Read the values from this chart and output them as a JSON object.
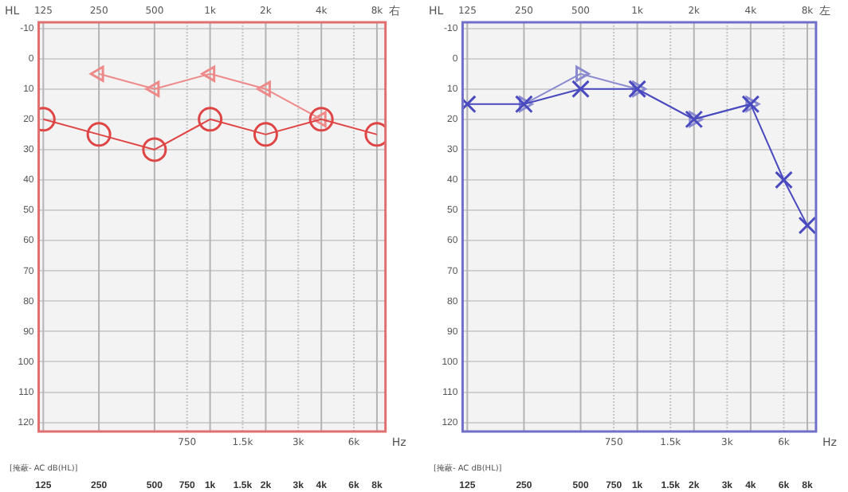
{
  "chart_data": [
    {
      "type": "line",
      "title": "右",
      "xlabel": "Hz",
      "ylabel": "HL",
      "log": "x",
      "grid": "y",
      "legend": false,
      "line_style": "solid",
      "x": [
        125,
        250,
        500,
        1000,
        2000,
        4000,
        6000,
        8000
      ],
      "series": [
        {
          "color": "#e04545",
          "marker": "circle",
          "values": [
            20,
            25,
            30,
            20,
            25,
            20,
            null,
            25
          ]
        },
        {
          "color": "#ee8a8a",
          "marker": "triangle",
          "values": [
            null,
            5,
            10,
            5,
            10,
            20,
            null,
            null
          ]
        }
      ],
      "xlim": [
        118,
        8900
      ],
      "ylim": [
        123,
        -12
      ],
      "yticks": [
        -10,
        0,
        10,
        20,
        30,
        40,
        50,
        60,
        70,
        80,
        90,
        100,
        110,
        120
      ],
      "xticks": [
        125,
        250,
        500,
        750,
        {
          "value": 1000,
          "label": "1k"
        },
        {
          "value": 1500,
          "label": "1.5k"
        },
        {
          "value": 2000,
          "label": "2k"
        },
        {
          "value": 3000,
          "label": "3k"
        },
        {
          "value": 4000,
          "label": "4k"
        },
        {
          "value": 6000,
          "label": "6k"
        },
        {
          "value": 8000,
          "label": "8k"
        }
      ],
      "ref_lines": [
        {
          "axis": "x",
          "value": 125,
          "label": "125",
          "color": "#b4b4b4",
          "line_style": "solid"
        },
        {
          "axis": "x",
          "value": 250,
          "label": "250",
          "color": "#b4b4b4",
          "line_style": "solid"
        },
        {
          "axis": "x",
          "value": 500,
          "label": "500",
          "color": "#b4b4b4",
          "line_style": "solid"
        },
        {
          "axis": "x",
          "value": 1000,
          "label": "1k",
          "color": "#b4b4b4",
          "line_style": "solid"
        },
        {
          "axis": "x",
          "value": 2000,
          "label": "2k",
          "color": "#b4b4b4",
          "line_style": "solid"
        },
        {
          "axis": "x",
          "value": 4000,
          "label": "4k",
          "color": "#b4b4b4",
          "line_style": "solid"
        },
        {
          "axis": "x",
          "value": 8000,
          "label": "8k",
          "color": "#b4b4b4",
          "line_style": "solid"
        },
        {
          "axis": "x",
          "value": 750,
          "label": "750",
          "color": "#c4c4c4",
          "line_style": "dotted"
        },
        {
          "axis": "x",
          "value": 1500,
          "label": "1.5k",
          "color": "#c4c4c4",
          "line_style": "dotted"
        },
        {
          "axis": "x",
          "value": 3000,
          "label": "3k",
          "color": "#c4c4c4",
          "line_style": "dotted"
        },
        {
          "axis": "x",
          "value": 6000,
          "label": "6k",
          "color": "#c4c4c4",
          "line_style": "dotted"
        }
      ],
      "annotations": [
        "[掩蔽- AC dB(HL)]"
      ]
    },
    {
      "type": "line",
      "title": "左",
      "xlabel": "Hz",
      "ylabel": "HL",
      "log": "x",
      "grid": "y",
      "legend": false,
      "line_style": "solid",
      "x": [
        125,
        250,
        500,
        1000,
        2000,
        4000,
        6000,
        8000
      ],
      "series": [
        {
          "color": "#4a4ac0",
          "marker": "cross",
          "values": [
            15,
            15,
            10,
            10,
            20,
            15,
            40,
            55
          ]
        },
        {
          "color": "#8a8ad0",
          "marker": "triangle",
          "values": [
            null,
            15,
            5,
            10,
            20,
            15,
            null,
            null
          ]
        }
      ],
      "xlim": [
        118,
        8900
      ],
      "ylim": [
        123,
        -12
      ],
      "yticks": [
        -10,
        0,
        10,
        20,
        30,
        40,
        50,
        60,
        70,
        80,
        90,
        100,
        110,
        120
      ],
      "xticks": [
        125,
        250,
        500,
        750,
        {
          "value": 1000,
          "label": "1k"
        },
        {
          "value": 1500,
          "label": "1.5k"
        },
        {
          "value": 2000,
          "label": "2k"
        },
        {
          "value": 3000,
          "label": "3k"
        },
        {
          "value": 4000,
          "label": "4k"
        },
        {
          "value": 6000,
          "label": "6k"
        },
        {
          "value": 8000,
          "label": "8k"
        }
      ],
      "ref_lines": [
        {
          "axis": "x",
          "value": 125,
          "label": "125",
          "color": "#b4b4b4",
          "line_style": "solid"
        },
        {
          "axis": "x",
          "value": 250,
          "label": "250",
          "color": "#b4b4b4",
          "line_style": "solid"
        },
        {
          "axis": "x",
          "value": 500,
          "label": "500",
          "color": "#b4b4b4",
          "line_style": "solid"
        },
        {
          "axis": "x",
          "value": 1000,
          "label": "1k",
          "color": "#b4b4b4",
          "line_style": "solid"
        },
        {
          "axis": "x",
          "value": 2000,
          "label": "2k",
          "color": "#b4b4b4",
          "line_style": "solid"
        },
        {
          "axis": "x",
          "value": 4000,
          "label": "4k",
          "color": "#b4b4b4",
          "line_style": "solid"
        },
        {
          "axis": "x",
          "value": 8000,
          "label": "8k",
          "color": "#b4b4b4",
          "line_style": "solid"
        },
        {
          "axis": "x",
          "value": 750,
          "label": "750",
          "color": "#c4c4c4",
          "line_style": "dotted"
        },
        {
          "axis": "x",
          "value": 1500,
          "label": "1.5k",
          "color": "#c4c4c4",
          "line_style": "dotted"
        },
        {
          "axis": "x",
          "value": 3000,
          "label": "3k",
          "color": "#c4c4c4",
          "line_style": "dotted"
        },
        {
          "axis": "x",
          "value": 6000,
          "label": "6k",
          "color": "#c4c4c4",
          "line_style": "dotted"
        }
      ],
      "annotations": [
        "[掩蔽- AC dB(HL)]"
      ]
    }
  ]
}
